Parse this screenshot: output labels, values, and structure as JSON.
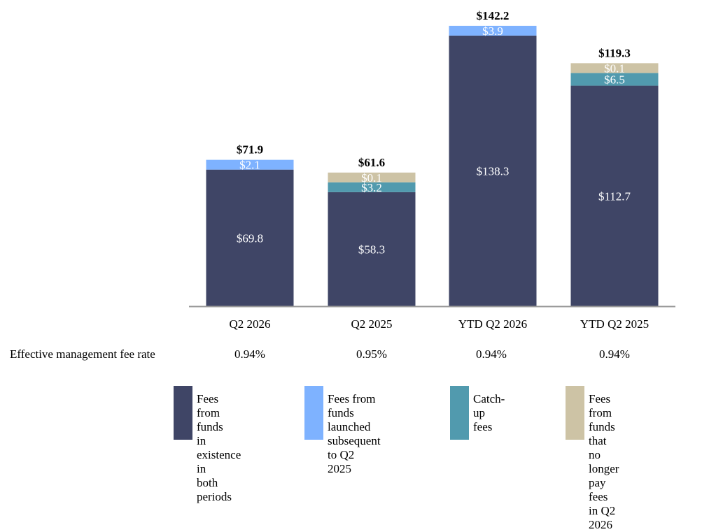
{
  "chart_data": {
    "type": "bar",
    "stacked": true,
    "categories": [
      "Q2 2026",
      "Q2 2025",
      "YTD Q2 2026",
      "YTD Q2 2025"
    ],
    "series": [
      {
        "name": "Fees from funds in existence in both periods",
        "color": "#3f4566",
        "values": [
          69.8,
          58.3,
          138.3,
          112.7
        ],
        "labels": [
          "$69.8",
          "$58.3",
          "$138.3",
          "$112.7"
        ]
      },
      {
        "name": "Fees from funds launched subsequent to Q2 2025",
        "color": "#7eb2ff",
        "values": [
          2.1,
          0,
          3.9,
          0
        ],
        "labels": [
          "$2.1",
          "",
          "$3.9",
          ""
        ]
      },
      {
        "name": "Catch-up fees",
        "color": "#519aae",
        "values": [
          0,
          3.2,
          0,
          6.5
        ],
        "labels": [
          "",
          "$3.2",
          "",
          "$6.5"
        ]
      },
      {
        "name": "Fees from funds that no longer pay fees in Q2 2026",
        "color": "#cdc3a5",
        "values": [
          0,
          0.1,
          0,
          0.1
        ],
        "labels": [
          "",
          "$0.1",
          "",
          "$0.1"
        ]
      }
    ],
    "totals": [
      "$71.9",
      "$61.6",
      "$142.2",
      "$119.3"
    ],
    "grid": false,
    "legend_position": "bottom"
  },
  "rates": {
    "title": "Effective management fee rate",
    "values": [
      "0.94%",
      "0.95%",
      "0.94%",
      "0.94%"
    ]
  },
  "legend": [
    {
      "lines": [
        "Fees from funds",
        "in existence in",
        "both periods"
      ],
      "color": "#3f4566"
    },
    {
      "lines": [
        "Fees from funds",
        "launched subsequent",
        "to Q2 2025"
      ],
      "color": "#7eb2ff"
    },
    {
      "lines": [
        "Catch-up fees"
      ],
      "color": "#519aae"
    },
    {
      "lines": [
        "Fees from funds",
        "that no longer pay",
        "fees in Q2 2026"
      ],
      "color": "#cdc3a5"
    }
  ]
}
